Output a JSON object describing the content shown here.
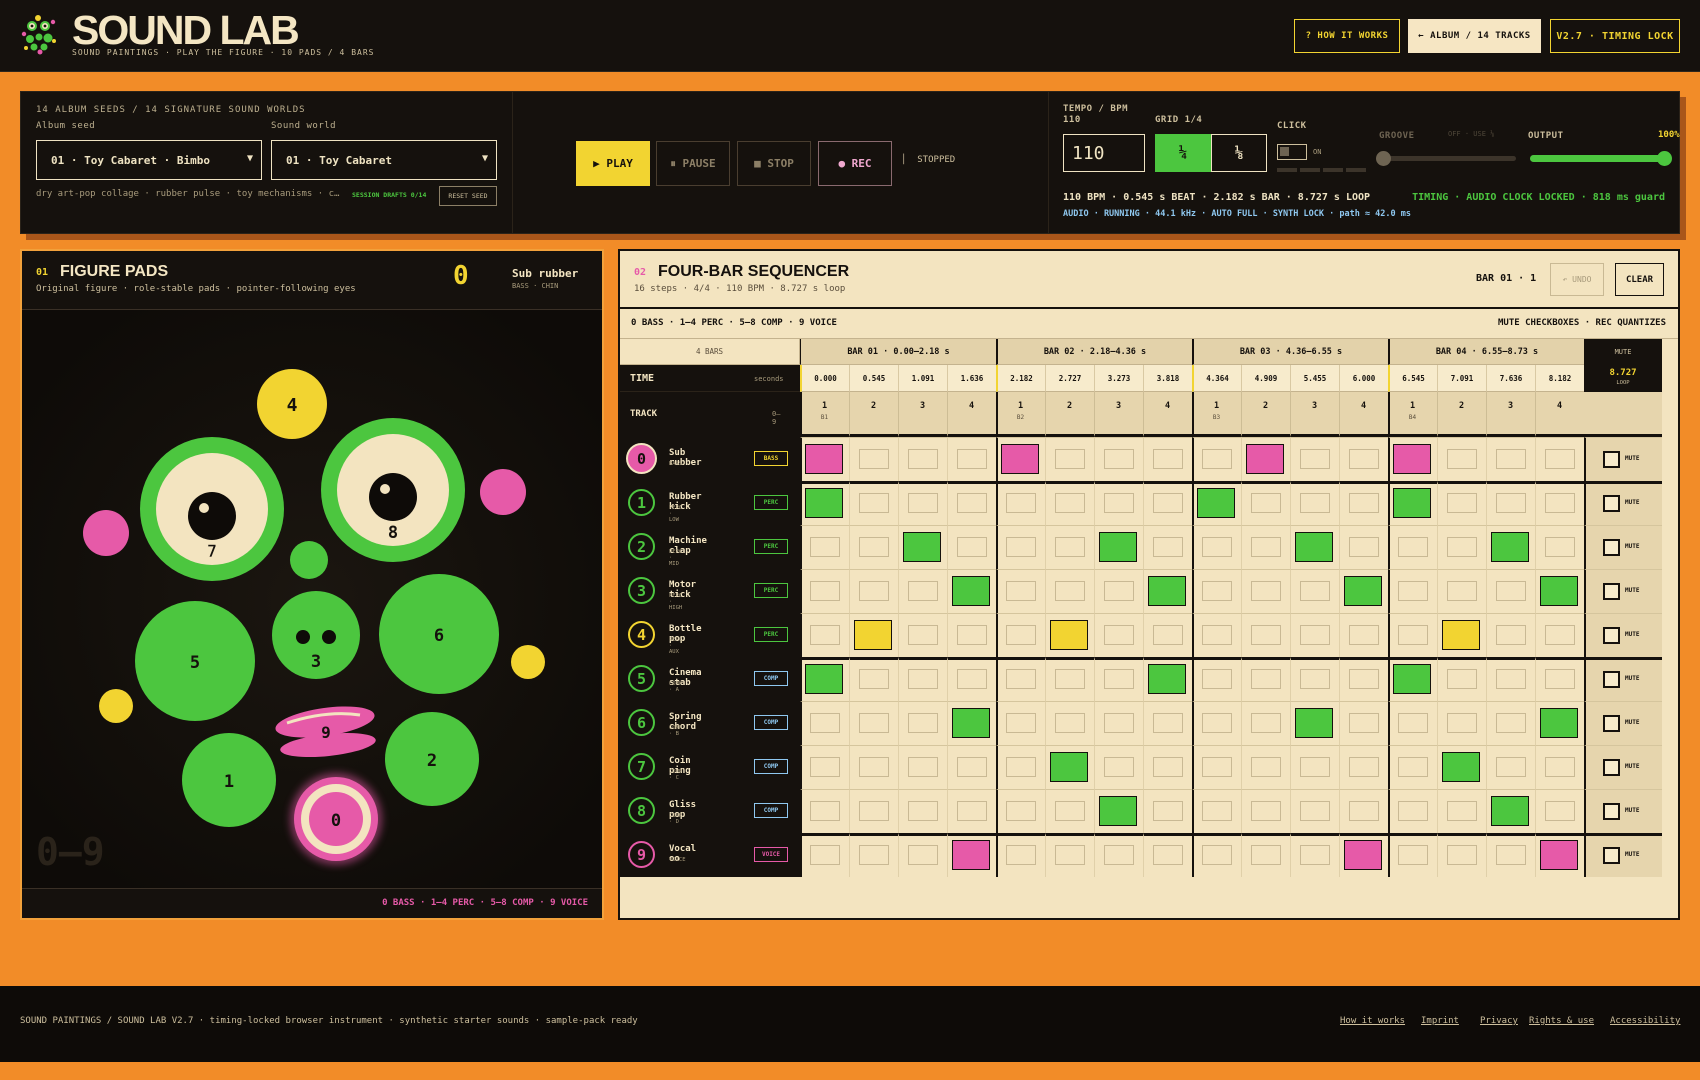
{
  "header": {
    "brand": "SOUND LAB",
    "tagline": "SOUND PAINTINGS · PLAY THE FIGURE · 10 PADS / 4 BARS",
    "how_it_works": "? HOW IT WORKS",
    "album": "← ALBUM / 14 TRACKS",
    "version": "V2.7 · TIMING LOCK"
  },
  "controls": {
    "seeds_label": "14 ALBUM SEEDS / 14 SIGNATURE SOUND WORLDS",
    "album_seed_label": "Album seed",
    "album_seed_value": "01 · Toy Cabaret · Bimbo",
    "sound_world_label": "Sound world",
    "sound_world_value": "01 · Toy Cabaret",
    "description": "dry art-pop collage · rubber pulse · toy mechanisms · c…",
    "session_drafts": "SESSION DRAFTS 0/14",
    "reset_seed": "RESET SEED",
    "play": "▶ PLAY",
    "pause": "⏸ PAUSE",
    "stop": "■ STOP",
    "rec": "● REC",
    "status": "STOPPED",
    "tempo_label": "TEMPO / BPM",
    "tempo_sub": "110",
    "tempo_value": "110",
    "grid_label": "GRID 1/4",
    "grid_quarter": "¼",
    "grid_eighth": "⅛",
    "click_label": "CLICK",
    "click_on": "ON",
    "groove_label": "GROOVE",
    "groove_note": "OFF · USE ⅛",
    "output_label": "OUTPUT",
    "output_value": "100%",
    "output_level": 1.0,
    "timing_line": "110 BPM · 0.545 s BEAT · 2.182 s BAR · 8.727 s LOOP",
    "timing_locked": "TIMING · AUDIO CLOCK LOCKED · 818 ms guard",
    "audio_line": "AUDIO · RUNNING · 44.1 kHz · AUTO FULL · SYNTH LOCK · path ≈ 42.0 ms"
  },
  "figure": {
    "num": "01",
    "title": "FIGURE PADS",
    "subtitle": "Original figure · role-stable pads · pointer-following eyes",
    "active_digit": "0",
    "active_name": "Sub rubber",
    "active_role": "BASS · CHIN",
    "range": "0–9",
    "footer": "0 BASS · 1–4 PERC · 5–8 COMP · 9 VOICE",
    "pads": [
      "0",
      "1",
      "2",
      "3",
      "4",
      "5",
      "6",
      "7",
      "8",
      "9"
    ]
  },
  "sequencer": {
    "num": "02",
    "title": "FOUR-BAR SEQUENCER",
    "subtitle": "16 steps · 4/4 · 110 BPM · 8.727 s loop",
    "bar_pos": "BAR 01 · 1",
    "undo": "↶ UNDO",
    "clear": "CLEAR",
    "legend": "0 BASS · 1–4 PERC · 5–8 COMP · 9 VOICE",
    "note": "MUTE CHECKBOXES · REC QUANTIZES",
    "bars_label": "4 BARS",
    "time_label": "TIME",
    "seconds_label": "seconds",
    "track_label": "TRACK",
    "track_range": "0–9",
    "mute_head": "MUTE",
    "loop_value": "8.727",
    "loop_label": "LOOP",
    "mute_label": "MUTE",
    "bars": [
      "BAR 01 · 0.00–2.18 s",
      "BAR 02 · 2.18–4.36 s",
      "BAR 03 · 4.36–6.55 s",
      "BAR 04 · 6.55–8.73 s"
    ],
    "times": [
      "0.000",
      "0.545",
      "1.091",
      "1.636",
      "2.182",
      "2.727",
      "3.273",
      "3.818",
      "4.364",
      "4.909",
      "5.455",
      "6.000",
      "6.545",
      "7.091",
      "7.636",
      "8.182"
    ],
    "steps": [
      "1",
      "2",
      "3",
      "4",
      "1",
      "2",
      "3",
      "4",
      "1",
      "2",
      "3",
      "4",
      "1",
      "2",
      "3",
      "4"
    ],
    "bar_tags": [
      "B1",
      "B2",
      "B3",
      "B4"
    ],
    "tracks": [
      {
        "digit": "0",
        "name": "Sub rubber",
        "sub": "BASS",
        "tag": "BASS",
        "color": "#e65aa8",
        "steps": [
          0,
          4,
          9,
          12
        ]
      },
      {
        "digit": "1",
        "name": "Rubber kick",
        "sub": "PERC · LOW",
        "tag": "PERC",
        "color": "#4cc63f",
        "steps": [
          0,
          8,
          12
        ]
      },
      {
        "digit": "2",
        "name": "Machine clap",
        "sub": "PERC · MID",
        "tag": "PERC",
        "color": "#4cc63f",
        "steps": [
          2,
          6,
          10,
          14
        ]
      },
      {
        "digit": "3",
        "name": "Motor tick",
        "sub": "PERC · HIGH",
        "tag": "PERC",
        "color": "#4cc63f",
        "steps": [
          3,
          7,
          11,
          15
        ]
      },
      {
        "digit": "4",
        "name": "Bottle pop",
        "sub": "PERC · AUX",
        "tag": "PERC",
        "color": "#f2d431",
        "steps": [
          1,
          5,
          13
        ]
      },
      {
        "digit": "5",
        "name": "Cinema stab",
        "sub": "COMP · A",
        "tag": "COMP",
        "color": "#4cc63f",
        "steps": [
          0,
          7,
          12
        ]
      },
      {
        "digit": "6",
        "name": "Spring chord",
        "sub": "COMP · B",
        "tag": "COMP",
        "color": "#4cc63f",
        "steps": [
          3,
          10,
          15
        ]
      },
      {
        "digit": "7",
        "name": "Coin ping",
        "sub": "COMP · C",
        "tag": "COMP",
        "color": "#4cc63f",
        "steps": [
          5,
          13
        ]
      },
      {
        "digit": "8",
        "name": "Gliss pop",
        "sub": "COMP · D",
        "tag": "COMP",
        "color": "#4cc63f",
        "steps": [
          6,
          14
        ]
      },
      {
        "digit": "9",
        "name": "Vocal oo",
        "sub": "VOICE",
        "tag": "VOICE",
        "color": "#e65aa8",
        "steps": [
          3,
          11,
          15
        ]
      }
    ]
  },
  "footer": {
    "left": "SOUND PAINTINGS / SOUND LAB V2.7 · timing-locked browser instrument · synthetic starter sounds · sample-pack ready",
    "links": [
      "How it works",
      "Imprint",
      "Privacy",
      "Rights & use",
      "Accessibility"
    ]
  },
  "colors": {
    "accent_yellow": "#f2d431",
    "accent_green": "#4cc63f",
    "accent_pink": "#e65aa8",
    "page_orange": "#f28c28",
    "ink": "#15110d",
    "paper": "#f3e4c0"
  }
}
